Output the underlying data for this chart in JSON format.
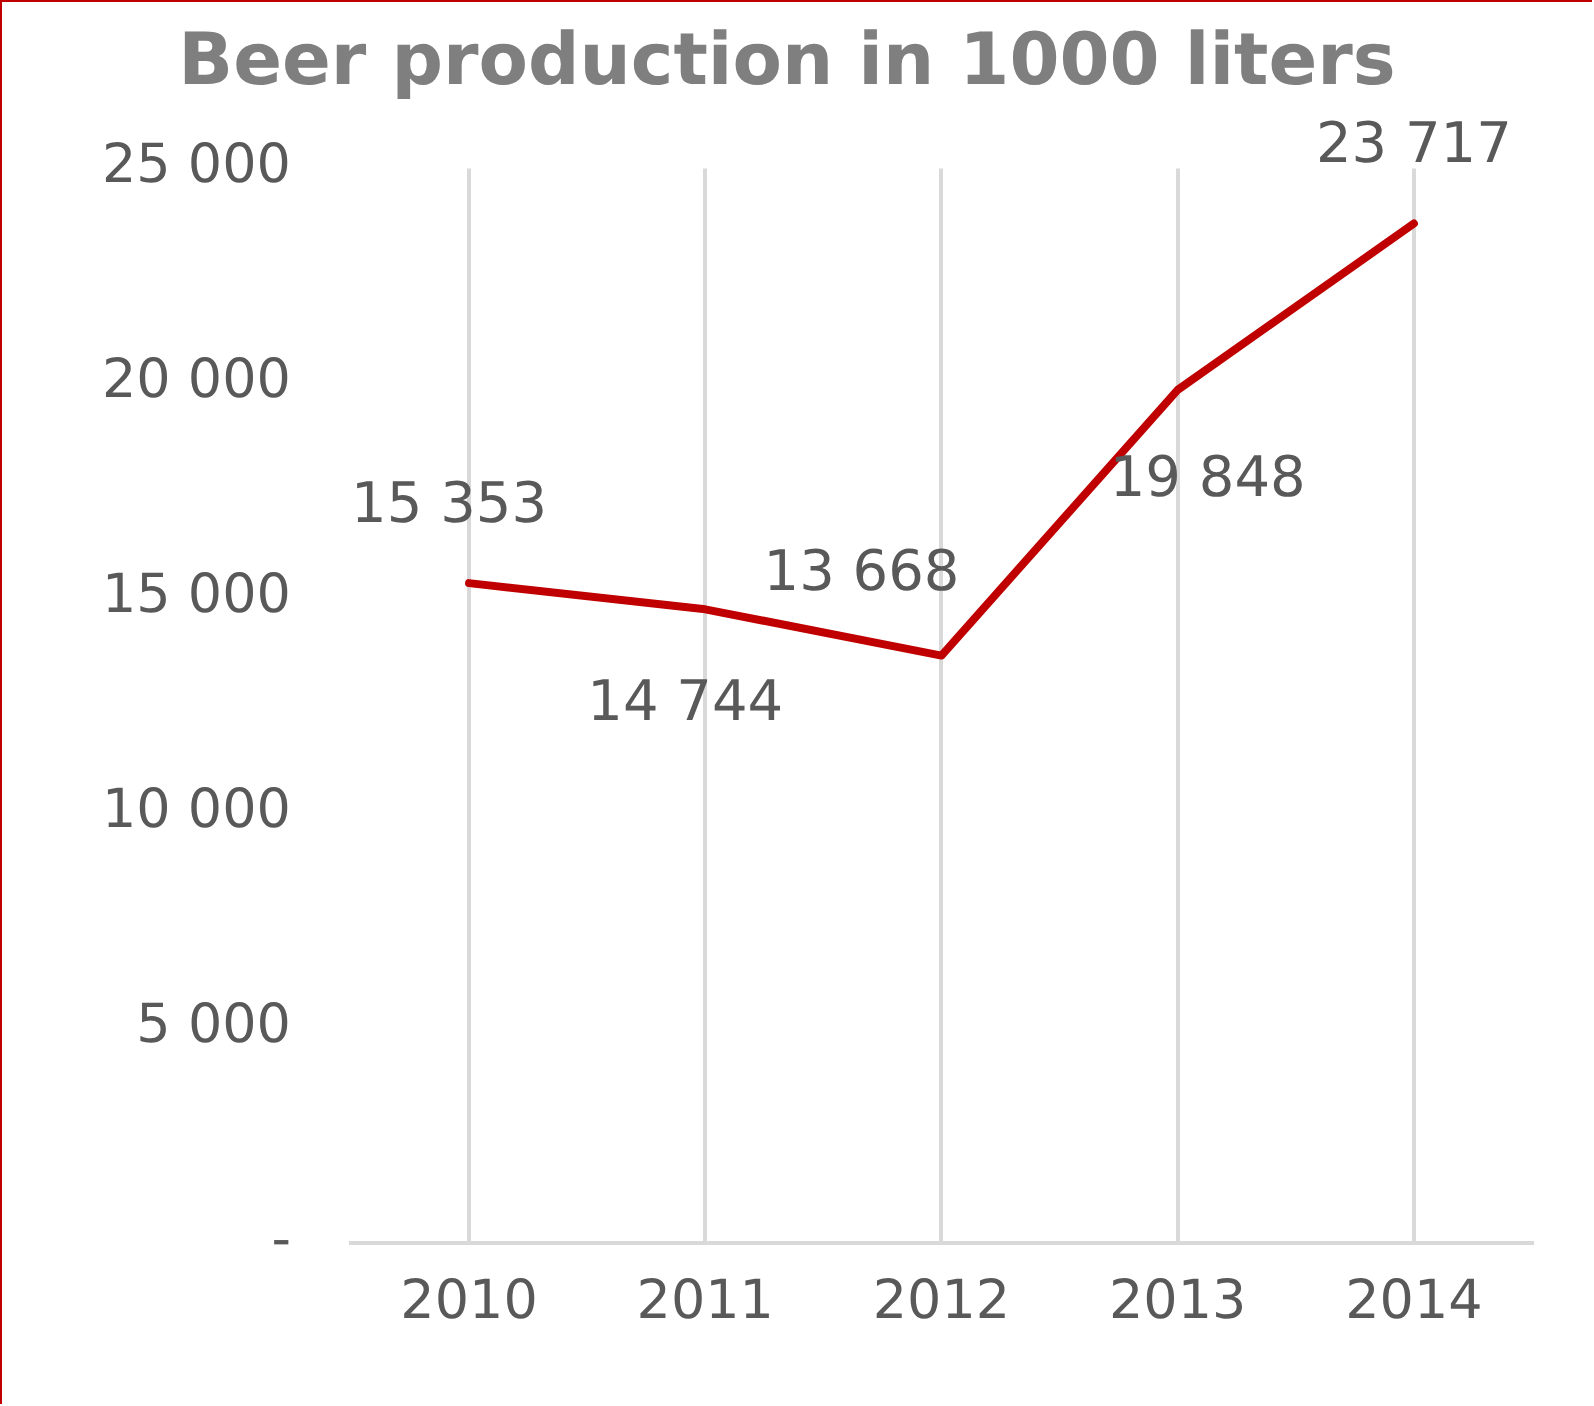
{
  "chart_data": {
    "type": "line",
    "title": "Beer production in 1000 liters",
    "categories": [
      "2010",
      "2011",
      "2012",
      "2013",
      "2014"
    ],
    "series": [
      {
        "color": "#c00000",
        "values": [
          15353,
          14744,
          13668,
          19848,
          23717
        ],
        "value_labels": [
          "15 353",
          "14 744",
          "13 668",
          "19 848",
          "23 717"
        ]
      }
    ],
    "ylim": [
      0,
      25000
    ],
    "yticks": [
      {
        "value": 0,
        "label": "-"
      },
      {
        "value": 5000,
        "label": "5 000"
      },
      {
        "value": 10000,
        "label": "10 000"
      },
      {
        "value": 15000,
        "label": "15 000"
      },
      {
        "value": 20000,
        "label": "20 000"
      },
      {
        "value": 25000,
        "label": "25 000"
      }
    ],
    "grid": "x",
    "legend": false,
    "marker": "none",
    "line_style": "solid"
  }
}
